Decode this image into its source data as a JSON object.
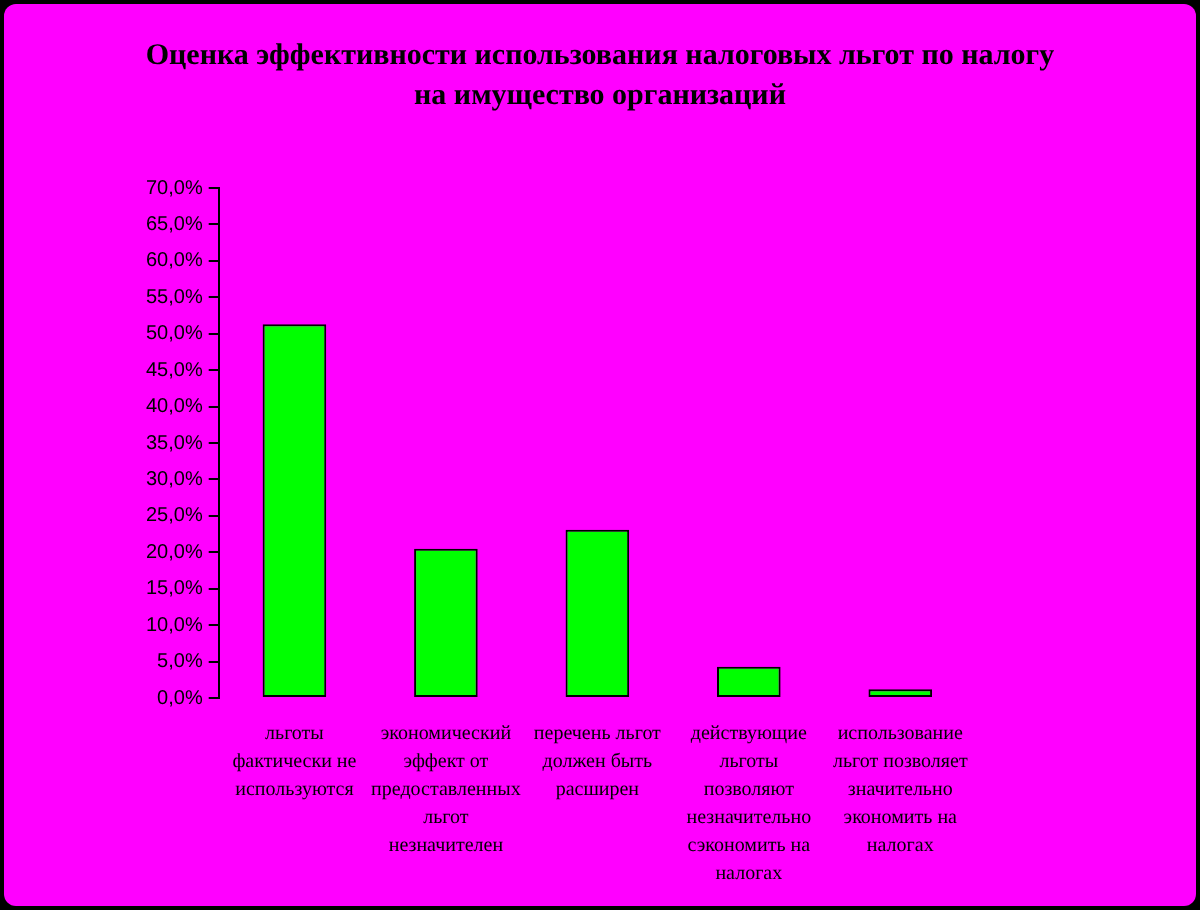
{
  "chart_data": {
    "type": "bar",
    "title": "Оценка эффективности использования налоговых льгот по налогу на имущество организаций",
    "categories": [
      "льготы фактически не используются",
      "экономический эффект от предоставленных льгот незначителен",
      "перечень льгот должен быть расширен",
      "действующие льготы позволяют незначительно сэкономить на налогах",
      "использование льгот позволяет значительно экономить на налогах"
    ],
    "values": [
      51.3,
      20.5,
      23.1,
      4.3,
      1.2
    ],
    "color": "#00ff00",
    "ylim": [
      0,
      70
    ],
    "yticks": [
      {
        "value": 0,
        "label": "0,0%"
      },
      {
        "value": 5,
        "label": "5,0%"
      },
      {
        "value": 10,
        "label": "10,0%"
      },
      {
        "value": 15,
        "label": "15,0%"
      },
      {
        "value": 20,
        "label": "20,0%"
      },
      {
        "value": 25,
        "label": "25,0%"
      },
      {
        "value": 30,
        "label": "30,0%"
      },
      {
        "value": 35,
        "label": "35,0%"
      },
      {
        "value": 40,
        "label": "40,0%"
      },
      {
        "value": 45,
        "label": "45,0%"
      },
      {
        "value": 50,
        "label": "50,0%"
      },
      {
        "value": 55,
        "label": "55,0%"
      },
      {
        "value": 60,
        "label": "60,0%"
      },
      {
        "value": 65,
        "label": "65,0%"
      },
      {
        "value": 70,
        "label": "70,0%"
      }
    ]
  }
}
